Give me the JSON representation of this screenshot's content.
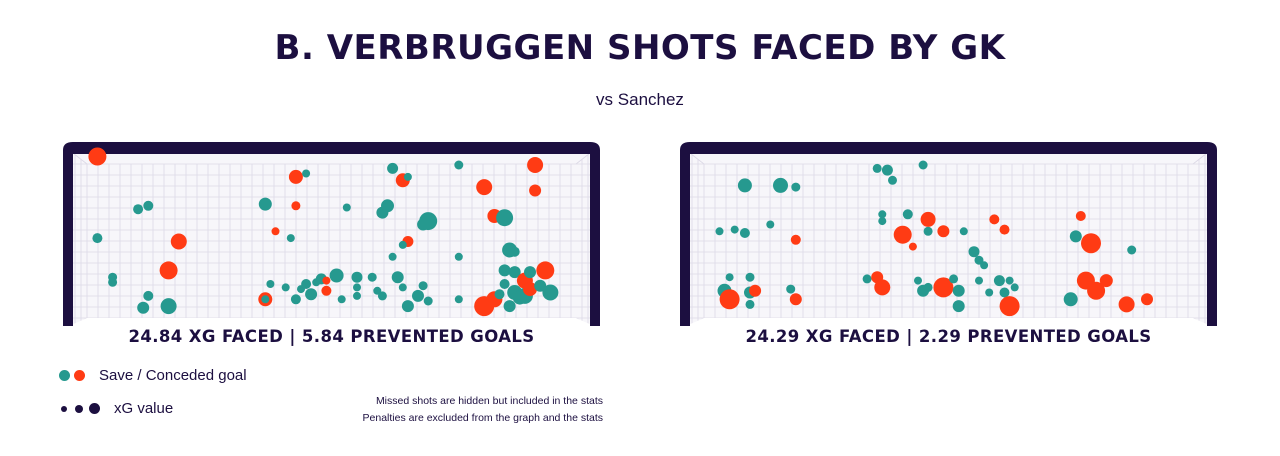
{
  "title": "B. VERBRUGGEN SHOTS FACED BY GK",
  "subtitle": "vs Sanchez",
  "colors": {
    "save": "#26998f",
    "goal": "#ff3b14",
    "frame": "#1c0f40",
    "net": "#dcd9e6",
    "net_bg": "#f7f6fa"
  },
  "legend": {
    "save_goal_label": "Save / Conceded goal",
    "xg_label": "xG value"
  },
  "notes": [
    "Missed shots are hidden but included in the stats",
    "Penalties are excluded from the graph and the stats"
  ],
  "chart_data": [
    {
      "type": "scatter",
      "goalkeeper": "B. Verbruggen",
      "stat_text": "24.84 XG FACED | 5.84 PREVENTED GOALS",
      "xg_faced": 24.84,
      "prevented_goals": 5.84,
      "xlim": [
        0,
        1
      ],
      "ylim": [
        0,
        1
      ],
      "points": [
        {
          "x": 0.04,
          "y": 0.95,
          "r": 9,
          "outcome": "goal"
        },
        {
          "x": 0.04,
          "y": 0.47,
          "r": 5,
          "outcome": "save"
        },
        {
          "x": 0.07,
          "y": 0.24,
          "r": 4.5,
          "outcome": "save"
        },
        {
          "x": 0.07,
          "y": 0.21,
          "r": 4.5,
          "outcome": "save"
        },
        {
          "x": 0.12,
          "y": 0.64,
          "r": 5,
          "outcome": "save"
        },
        {
          "x": 0.14,
          "y": 0.66,
          "r": 5,
          "outcome": "save"
        },
        {
          "x": 0.14,
          "y": 0.13,
          "r": 5,
          "outcome": "save"
        },
        {
          "x": 0.13,
          "y": 0.06,
          "r": 6,
          "outcome": "save"
        },
        {
          "x": 0.18,
          "y": 0.07,
          "r": 8,
          "outcome": "save"
        },
        {
          "x": 0.18,
          "y": 0.28,
          "r": 9,
          "outcome": "goal"
        },
        {
          "x": 0.2,
          "y": 0.45,
          "r": 8,
          "outcome": "goal"
        },
        {
          "x": 0.43,
          "y": 0.83,
          "r": 7,
          "outcome": "goal"
        },
        {
          "x": 0.37,
          "y": 0.67,
          "r": 6.5,
          "outcome": "save"
        },
        {
          "x": 0.43,
          "y": 0.66,
          "r": 4.5,
          "outcome": "goal"
        },
        {
          "x": 0.39,
          "y": 0.51,
          "r": 4,
          "outcome": "goal"
        },
        {
          "x": 0.42,
          "y": 0.47,
          "r": 4,
          "outcome": "save"
        },
        {
          "x": 0.37,
          "y": 0.11,
          "r": 7,
          "outcome": "goal"
        },
        {
          "x": 0.37,
          "y": 0.11,
          "r": 4,
          "outcome": "save"
        },
        {
          "x": 0.38,
          "y": 0.2,
          "r": 4,
          "outcome": "save"
        },
        {
          "x": 0.41,
          "y": 0.18,
          "r": 4,
          "outcome": "save"
        },
        {
          "x": 0.43,
          "y": 0.11,
          "r": 5,
          "outcome": "save"
        },
        {
          "x": 0.44,
          "y": 0.17,
          "r": 4,
          "outcome": "save"
        },
        {
          "x": 0.45,
          "y": 0.2,
          "r": 5,
          "outcome": "save"
        },
        {
          "x": 0.46,
          "y": 0.14,
          "r": 6,
          "outcome": "save"
        },
        {
          "x": 0.47,
          "y": 0.21,
          "r": 4,
          "outcome": "save"
        },
        {
          "x": 0.48,
          "y": 0.23,
          "r": 5.5,
          "outcome": "save"
        },
        {
          "x": 0.49,
          "y": 0.16,
          "r": 5,
          "outcome": "goal"
        },
        {
          "x": 0.49,
          "y": 0.22,
          "r": 4,
          "outcome": "goal"
        },
        {
          "x": 0.51,
          "y": 0.25,
          "r": 7,
          "outcome": "save"
        },
        {
          "x": 0.52,
          "y": 0.11,
          "r": 4,
          "outcome": "save"
        },
        {
          "x": 0.55,
          "y": 0.24,
          "r": 5.5,
          "outcome": "save"
        },
        {
          "x": 0.55,
          "y": 0.18,
          "r": 4,
          "outcome": "save"
        },
        {
          "x": 0.55,
          "y": 0.13,
          "r": 4,
          "outcome": "save"
        },
        {
          "x": 0.53,
          "y": 0.65,
          "r": 4,
          "outcome": "save"
        },
        {
          "x": 0.58,
          "y": 0.24,
          "r": 4.5,
          "outcome": "save"
        },
        {
          "x": 0.59,
          "y": 0.16,
          "r": 4,
          "outcome": "save"
        },
        {
          "x": 0.6,
          "y": 0.62,
          "r": 6,
          "outcome": "save"
        },
        {
          "x": 0.61,
          "y": 0.66,
          "r": 6.5,
          "outcome": "save"
        },
        {
          "x": 0.62,
          "y": 0.36,
          "r": 4,
          "outcome": "save"
        },
        {
          "x": 0.62,
          "y": 0.88,
          "r": 5.5,
          "outcome": "save"
        },
        {
          "x": 0.64,
          "y": 0.81,
          "r": 7,
          "outcome": "goal"
        },
        {
          "x": 0.65,
          "y": 0.83,
          "r": 4,
          "outcome": "save"
        },
        {
          "x": 0.65,
          "y": 0.45,
          "r": 5.5,
          "outcome": "goal"
        },
        {
          "x": 0.6,
          "y": 0.13,
          "r": 4.5,
          "outcome": "save"
        },
        {
          "x": 0.63,
          "y": 0.24,
          "r": 6,
          "outcome": "save"
        },
        {
          "x": 0.64,
          "y": 0.18,
          "r": 4,
          "outcome": "save"
        },
        {
          "x": 0.65,
          "y": 0.07,
          "r": 6,
          "outcome": "save"
        },
        {
          "x": 0.67,
          "y": 0.13,
          "r": 6,
          "outcome": "save"
        },
        {
          "x": 0.68,
          "y": 0.19,
          "r": 4.5,
          "outcome": "save"
        },
        {
          "x": 0.69,
          "y": 0.1,
          "r": 4.5,
          "outcome": "save"
        },
        {
          "x": 0.64,
          "y": 0.43,
          "r": 4,
          "outcome": "save"
        },
        {
          "x": 0.68,
          "y": 0.55,
          "r": 6,
          "outcome": "save"
        },
        {
          "x": 0.69,
          "y": 0.57,
          "r": 9,
          "outcome": "save"
        },
        {
          "x": 0.75,
          "y": 0.9,
          "r": 4.5,
          "outcome": "save"
        },
        {
          "x": 0.75,
          "y": 0.36,
          "r": 4,
          "outcome": "save"
        },
        {
          "x": 0.75,
          "y": 0.11,
          "r": 4,
          "outcome": "save"
        },
        {
          "x": 0.8,
          "y": 0.77,
          "r": 8,
          "outcome": "goal"
        },
        {
          "x": 0.82,
          "y": 0.6,
          "r": 7,
          "outcome": "goal"
        },
        {
          "x": 0.84,
          "y": 0.59,
          "r": 8.5,
          "outcome": "save"
        },
        {
          "x": 0.85,
          "y": 0.4,
          "r": 7.5,
          "outcome": "save"
        },
        {
          "x": 0.86,
          "y": 0.39,
          "r": 5,
          "outcome": "save"
        },
        {
          "x": 0.84,
          "y": 0.28,
          "r": 6,
          "outcome": "save"
        },
        {
          "x": 0.86,
          "y": 0.27,
          "r": 6,
          "outcome": "save"
        },
        {
          "x": 0.84,
          "y": 0.2,
          "r": 5,
          "outcome": "save"
        },
        {
          "x": 0.8,
          "y": 0.07,
          "r": 10,
          "outcome": "goal"
        },
        {
          "x": 0.82,
          "y": 0.11,
          "r": 8,
          "outcome": "goal"
        },
        {
          "x": 0.83,
          "y": 0.14,
          "r": 5,
          "outcome": "save"
        },
        {
          "x": 0.85,
          "y": 0.07,
          "r": 6,
          "outcome": "save"
        },
        {
          "x": 0.86,
          "y": 0.15,
          "r": 7.5,
          "outcome": "save"
        },
        {
          "x": 0.87,
          "y": 0.12,
          "r": 7,
          "outcome": "save"
        },
        {
          "x": 0.88,
          "y": 0.22,
          "r": 8,
          "outcome": "goal"
        },
        {
          "x": 0.88,
          "y": 0.13,
          "r": 8,
          "outcome": "save"
        },
        {
          "x": 0.89,
          "y": 0.17,
          "r": 7,
          "outcome": "goal"
        },
        {
          "x": 0.89,
          "y": 0.27,
          "r": 6,
          "outcome": "save"
        },
        {
          "x": 0.9,
          "y": 0.9,
          "r": 8,
          "outcome": "goal"
        },
        {
          "x": 0.9,
          "y": 0.75,
          "r": 6,
          "outcome": "goal"
        },
        {
          "x": 0.91,
          "y": 0.19,
          "r": 6,
          "outcome": "save"
        },
        {
          "x": 0.92,
          "y": 0.28,
          "r": 9,
          "outcome": "goal"
        },
        {
          "x": 0.93,
          "y": 0.15,
          "r": 8,
          "outcome": "save"
        },
        {
          "x": 0.45,
          "y": 0.85,
          "r": 4,
          "outcome": "save"
        }
      ]
    },
    {
      "type": "scatter",
      "goalkeeper": "Sanchez",
      "stat_text": "24.29 XG FACED | 2.29 PREVENTED GOALS",
      "xg_faced": 24.29,
      "prevented_goals": 2.29,
      "xlim": [
        0,
        1
      ],
      "ylim": [
        0,
        1
      ],
      "points": [
        {
          "x": 0.1,
          "y": 0.78,
          "r": 7,
          "outcome": "save"
        },
        {
          "x": 0.17,
          "y": 0.78,
          "r": 7.5,
          "outcome": "save"
        },
        {
          "x": 0.2,
          "y": 0.77,
          "r": 4.5,
          "outcome": "save"
        },
        {
          "x": 0.1,
          "y": 0.5,
          "r": 5,
          "outcome": "save"
        },
        {
          "x": 0.05,
          "y": 0.51,
          "r": 4,
          "outcome": "save"
        },
        {
          "x": 0.08,
          "y": 0.52,
          "r": 4,
          "outcome": "save"
        },
        {
          "x": 0.15,
          "y": 0.55,
          "r": 4,
          "outcome": "save"
        },
        {
          "x": 0.2,
          "y": 0.46,
          "r": 5,
          "outcome": "goal"
        },
        {
          "x": 0.07,
          "y": 0.24,
          "r": 4,
          "outcome": "save"
        },
        {
          "x": 0.06,
          "y": 0.16,
          "r": 7,
          "outcome": "save"
        },
        {
          "x": 0.07,
          "y": 0.11,
          "r": 10,
          "outcome": "goal"
        },
        {
          "x": 0.11,
          "y": 0.24,
          "r": 4.5,
          "outcome": "save"
        },
        {
          "x": 0.11,
          "y": 0.15,
          "r": 6,
          "outcome": "save"
        },
        {
          "x": 0.12,
          "y": 0.16,
          "r": 6,
          "outcome": "goal"
        },
        {
          "x": 0.11,
          "y": 0.08,
          "r": 4.5,
          "outcome": "save"
        },
        {
          "x": 0.19,
          "y": 0.17,
          "r": 4.5,
          "outcome": "save"
        },
        {
          "x": 0.2,
          "y": 0.11,
          "r": 6,
          "outcome": "goal"
        },
        {
          "x": 0.36,
          "y": 0.88,
          "r": 4.5,
          "outcome": "save"
        },
        {
          "x": 0.38,
          "y": 0.87,
          "r": 5.5,
          "outcome": "save"
        },
        {
          "x": 0.39,
          "y": 0.81,
          "r": 4.5,
          "outcome": "save"
        },
        {
          "x": 0.45,
          "y": 0.9,
          "r": 4.5,
          "outcome": "save"
        },
        {
          "x": 0.37,
          "y": 0.61,
          "r": 4,
          "outcome": "save"
        },
        {
          "x": 0.37,
          "y": 0.57,
          "r": 4,
          "outcome": "save"
        },
        {
          "x": 0.42,
          "y": 0.61,
          "r": 5,
          "outcome": "save"
        },
        {
          "x": 0.46,
          "y": 0.58,
          "r": 7.5,
          "outcome": "goal"
        },
        {
          "x": 0.46,
          "y": 0.51,
          "r": 4.5,
          "outcome": "save"
        },
        {
          "x": 0.41,
          "y": 0.49,
          "r": 9,
          "outcome": "goal"
        },
        {
          "x": 0.43,
          "y": 0.42,
          "r": 4,
          "outcome": "goal"
        },
        {
          "x": 0.49,
          "y": 0.51,
          "r": 6,
          "outcome": "goal"
        },
        {
          "x": 0.53,
          "y": 0.51,
          "r": 4,
          "outcome": "save"
        },
        {
          "x": 0.55,
          "y": 0.39,
          "r": 5.5,
          "outcome": "save"
        },
        {
          "x": 0.56,
          "y": 0.34,
          "r": 4.5,
          "outcome": "save"
        },
        {
          "x": 0.57,
          "y": 0.31,
          "r": 4,
          "outcome": "save"
        },
        {
          "x": 0.59,
          "y": 0.58,
          "r": 5,
          "outcome": "goal"
        },
        {
          "x": 0.61,
          "y": 0.52,
          "r": 5,
          "outcome": "goal"
        },
        {
          "x": 0.34,
          "y": 0.23,
          "r": 4.5,
          "outcome": "save"
        },
        {
          "x": 0.36,
          "y": 0.24,
          "r": 6,
          "outcome": "goal"
        },
        {
          "x": 0.37,
          "y": 0.18,
          "r": 8,
          "outcome": "goal"
        },
        {
          "x": 0.44,
          "y": 0.22,
          "r": 4,
          "outcome": "save"
        },
        {
          "x": 0.45,
          "y": 0.16,
          "r": 6,
          "outcome": "save"
        },
        {
          "x": 0.46,
          "y": 0.18,
          "r": 4.5,
          "outcome": "save"
        },
        {
          "x": 0.49,
          "y": 0.18,
          "r": 10,
          "outcome": "goal"
        },
        {
          "x": 0.51,
          "y": 0.23,
          "r": 4.5,
          "outcome": "save"
        },
        {
          "x": 0.52,
          "y": 0.16,
          "r": 6,
          "outcome": "save"
        },
        {
          "x": 0.52,
          "y": 0.07,
          "r": 6,
          "outcome": "save"
        },
        {
          "x": 0.56,
          "y": 0.22,
          "r": 4,
          "outcome": "save"
        },
        {
          "x": 0.58,
          "y": 0.15,
          "r": 4,
          "outcome": "save"
        },
        {
          "x": 0.6,
          "y": 0.22,
          "r": 5.5,
          "outcome": "save"
        },
        {
          "x": 0.61,
          "y": 0.15,
          "r": 5,
          "outcome": "save"
        },
        {
          "x": 0.62,
          "y": 0.22,
          "r": 4,
          "outcome": "save"
        },
        {
          "x": 0.62,
          "y": 0.07,
          "r": 10,
          "outcome": "goal"
        },
        {
          "x": 0.63,
          "y": 0.18,
          "r": 4,
          "outcome": "save"
        },
        {
          "x": 0.74,
          "y": 0.11,
          "r": 7,
          "outcome": "save"
        },
        {
          "x": 0.76,
          "y": 0.6,
          "r": 5,
          "outcome": "goal"
        },
        {
          "x": 0.75,
          "y": 0.48,
          "r": 6,
          "outcome": "save"
        },
        {
          "x": 0.78,
          "y": 0.44,
          "r": 10,
          "outcome": "goal"
        },
        {
          "x": 0.77,
          "y": 0.22,
          "r": 9,
          "outcome": "goal"
        },
        {
          "x": 0.79,
          "y": 0.16,
          "r": 9,
          "outcome": "goal"
        },
        {
          "x": 0.81,
          "y": 0.22,
          "r": 6.5,
          "outcome": "goal"
        },
        {
          "x": 0.85,
          "y": 0.08,
          "r": 8,
          "outcome": "goal"
        },
        {
          "x": 0.86,
          "y": 0.4,
          "r": 4.5,
          "outcome": "save"
        },
        {
          "x": 0.89,
          "y": 0.11,
          "r": 6,
          "outcome": "goal"
        }
      ]
    }
  ]
}
